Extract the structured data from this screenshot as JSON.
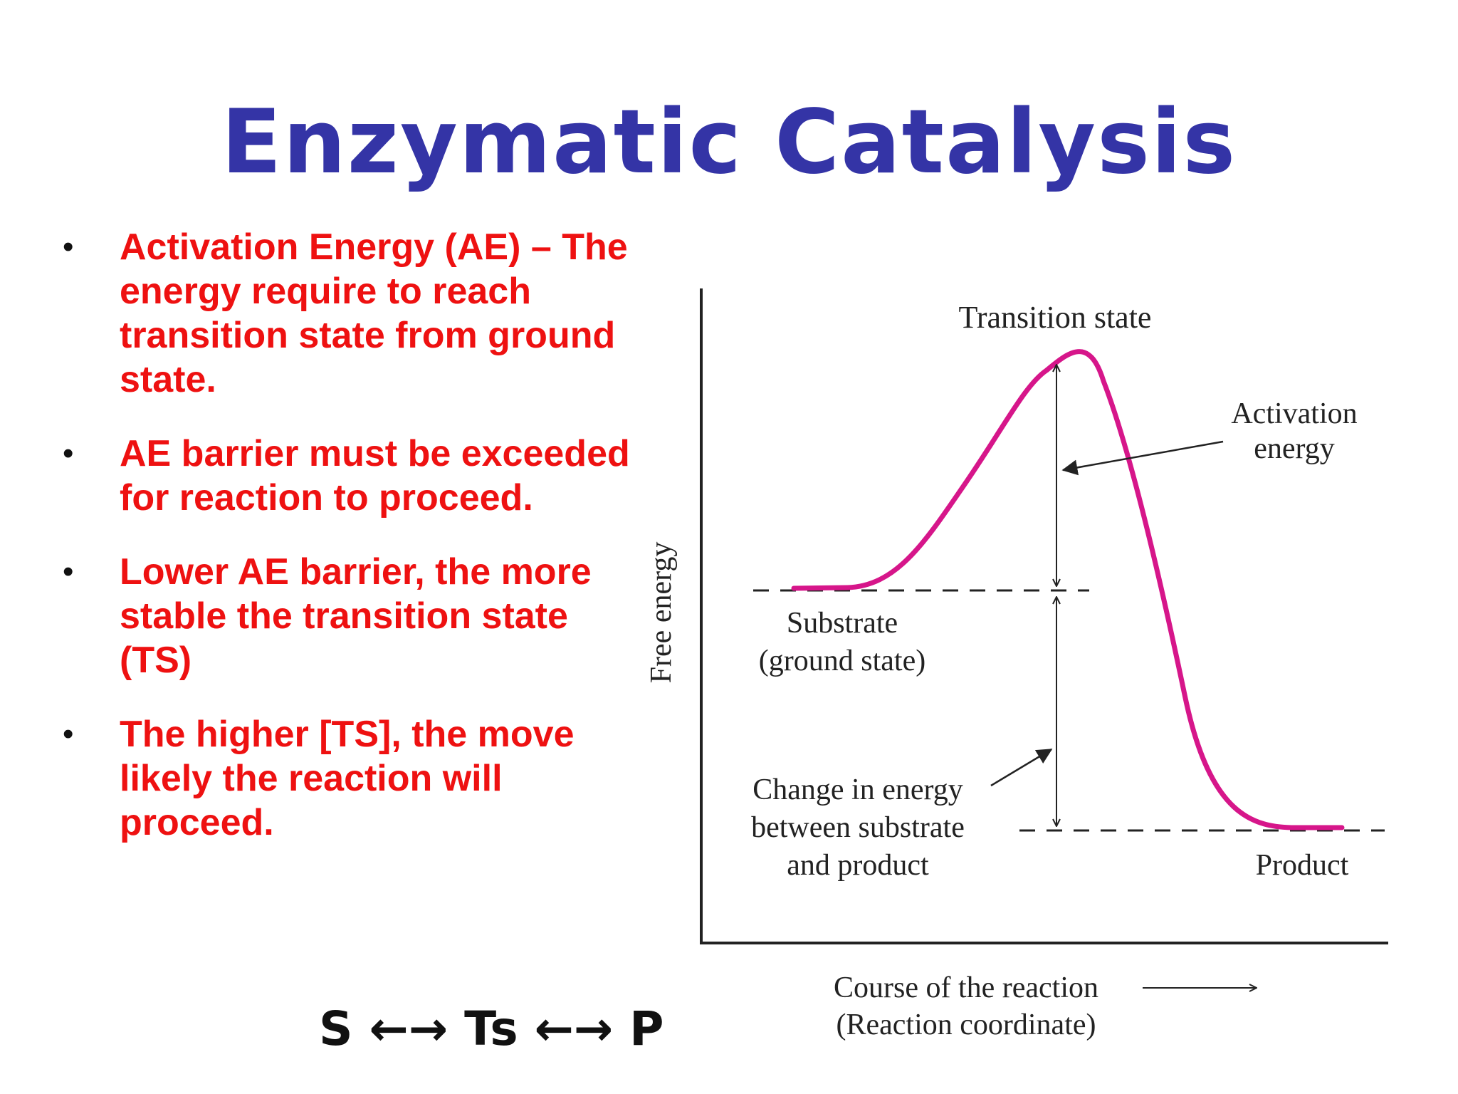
{
  "title": "Enzymatic Catalysis",
  "bullets": [
    "Activation Energy (AE) – The energy require to reach transition state from ground state.",
    "AE barrier must be exceeded for reaction to proceed.",
    "Lower AE barrier, the more stable the transition state (TS)",
    "The higher [TS], the move likely the reaction will proceed."
  ],
  "bullet_symbol": "•",
  "equation": "S ←→ Ts ←→ P",
  "diagram": {
    "labels": {
      "transition_state": "Transition state",
      "activation_energy_line1": "Activation",
      "activation_energy_line2": "energy",
      "substrate_line1": "Substrate",
      "substrate_line2": "(ground state)",
      "change_line1": "Change in energy",
      "change_line2": "between substrate",
      "change_line3": "and product",
      "product": "Product",
      "y_axis": "Free energy",
      "x_axis_line1": "Course of the reaction",
      "x_axis_line2": "(Reaction coordinate)"
    },
    "colors": {
      "curve": "#d6168a",
      "lines": "#222222",
      "title": "#3434a6",
      "bullets": "#ee1111"
    }
  }
}
